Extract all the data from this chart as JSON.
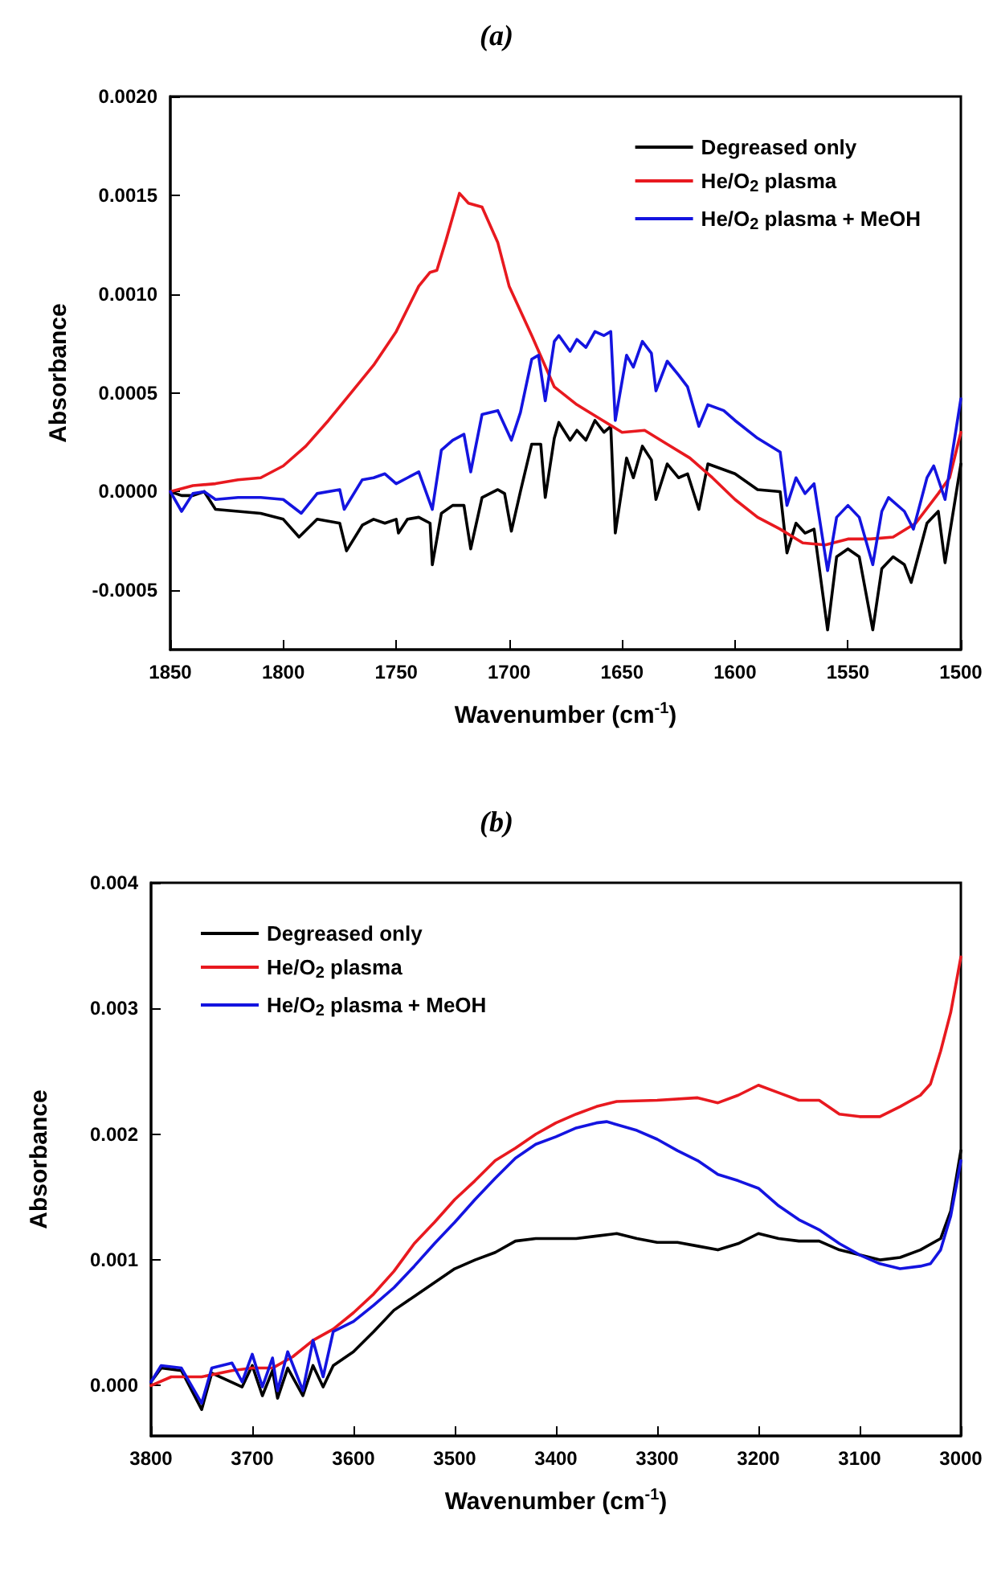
{
  "chart_data": [
    {
      "type": "line",
      "title": "(a)",
      "xlabel": "Wavenumber (cm$^{-1}$)",
      "ylabel": "Absorbance",
      "xlim": [
        1850,
        1500
      ],
      "xticks": [
        1850,
        1800,
        1750,
        1700,
        1650,
        1600,
        1550,
        1500
      ],
      "ylim": [
        -0.0008,
        0.002
      ],
      "yticks": [
        {
          "value": -0.0005,
          "label": "-0.0005"
        },
        {
          "value": 0,
          "label": "0.0000"
        },
        {
          "value": 0.0005,
          "label": "0.0005"
        },
        {
          "value": 0.001,
          "label": "0.0010"
        },
        {
          "value": 0.0015,
          "label": "0.0015"
        },
        {
          "value": 0.002,
          "label": "0.0020"
        }
      ],
      "legend": "top right",
      "grid": false,
      "marker": "none",
      "line_style": "solid",
      "series": [
        {
          "name": "Degreased only",
          "color": "#000000",
          "x": [
            1850,
            1845,
            1840,
            1835,
            1830,
            1820,
            1810,
            1800,
            1793,
            1785,
            1775,
            1772,
            1765,
            1760,
            1755,
            1750,
            1749,
            1745,
            1740,
            1735,
            1734,
            1730,
            1725,
            1720,
            1717,
            1712,
            1705,
            1702,
            1699,
            1695,
            1690,
            1686,
            1684,
            1680,
            1678,
            1673,
            1670,
            1666,
            1662,
            1658,
            1655,
            1653,
            1648,
            1645,
            1641,
            1637,
            1635,
            1630,
            1625,
            1621,
            1616,
            1612,
            1600,
            1590,
            1580,
            1577,
            1573,
            1569,
            1565,
            1559,
            1555,
            1550,
            1545,
            1539,
            1535,
            1530,
            1525,
            1522,
            1515,
            1510,
            1507,
            1500
          ],
          "values": [
            0,
            -2e-05,
            -2e-05,
            0,
            -9e-05,
            -0.0001,
            -0.00011,
            -0.00014,
            -0.00023,
            -0.00014,
            -0.00016,
            -0.0003,
            -0.00017,
            -0.00014,
            -0.00016,
            -0.00014,
            -0.00021,
            -0.00014,
            -0.00013,
            -0.00016,
            -0.00037,
            -0.00011,
            -7e-05,
            -7e-05,
            -0.00029,
            -3e-05,
            1e-05,
            -1e-05,
            -0.0002,
            0,
            0.00024,
            0.00024,
            -3e-05,
            0.00027,
            0.00035,
            0.00026,
            0.00031,
            0.00026,
            0.00036,
            0.0003,
            0.00033,
            -0.00021,
            0.00017,
            7e-05,
            0.00023,
            0.00016,
            -4e-05,
            0.00014,
            7e-05,
            9e-05,
            -9e-05,
            0.00014,
            9e-05,
            1e-05,
            0,
            -0.00031,
            -0.00016,
            -0.00021,
            -0.00019,
            -0.0007,
            -0.00033,
            -0.00029,
            -0.00033,
            -0.0007,
            -0.00039,
            -0.00033,
            -0.00037,
            -0.00046,
            -0.00016,
            -0.0001,
            -0.00036,
            0.00014
          ]
        },
        {
          "name": "He/O$_{2}$ plasma",
          "color": "#e8191f",
          "x": [
            1850,
            1840,
            1830,
            1820,
            1810,
            1800,
            1790,
            1780,
            1770,
            1760,
            1750,
            1740,
            1735,
            1732,
            1728,
            1722,
            1718,
            1712,
            1705,
            1700,
            1690,
            1680,
            1670,
            1660,
            1650,
            1640,
            1630,
            1620,
            1610,
            1600,
            1590,
            1580,
            1570,
            1560,
            1550,
            1540,
            1530,
            1520,
            1510,
            1505,
            1500
          ],
          "values": [
            0,
            3e-05,
            4e-05,
            6e-05,
            7e-05,
            0.00013,
            0.00023,
            0.00036,
            0.0005,
            0.00064,
            0.00081,
            0.00104,
            0.00111,
            0.00112,
            0.00127,
            0.00151,
            0.00146,
            0.00144,
            0.00126,
            0.00104,
            0.00079,
            0.00053,
            0.00044,
            0.00037,
            0.0003,
            0.00031,
            0.00024,
            0.00017,
            7e-05,
            -4e-05,
            -0.00013,
            -0.00019,
            -0.00026,
            -0.00027,
            -0.00024,
            -0.00024,
            -0.00023,
            -0.00016,
            -1e-05,
            7e-05,
            0.0003
          ]
        },
        {
          "name": "He/O$_{2}$ plasma + MeOH",
          "color": "#1414e0",
          "x": [
            1850,
            1845,
            1840,
            1835,
            1830,
            1820,
            1810,
            1800,
            1792,
            1785,
            1775,
            1773,
            1765,
            1760,
            1755,
            1750,
            1745,
            1740,
            1734,
            1730,
            1725,
            1720,
            1717,
            1712,
            1705,
            1699,
            1695,
            1690,
            1687,
            1684,
            1680,
            1678,
            1673,
            1670,
            1666,
            1662,
            1658,
            1655,
            1653,
            1648,
            1645,
            1641,
            1637,
            1635,
            1630,
            1625,
            1621,
            1616,
            1612,
            1605,
            1600,
            1590,
            1580,
            1577,
            1573,
            1569,
            1565,
            1559,
            1555,
            1550,
            1545,
            1539,
            1535,
            1532,
            1525,
            1521,
            1515,
            1512,
            1507,
            1500
          ],
          "values": [
            0,
            -0.0001,
            -1e-05,
            0,
            -4e-05,
            -3e-05,
            -3e-05,
            -4e-05,
            -0.00011,
            -1e-05,
            1e-05,
            -9e-05,
            6e-05,
            7e-05,
            9e-05,
            4e-05,
            7e-05,
            0.0001,
            -9e-05,
            0.00021,
            0.00026,
            0.00029,
            0.0001,
            0.00039,
            0.00041,
            0.00026,
            0.0004,
            0.00067,
            0.00069,
            0.00046,
            0.00076,
            0.00079,
            0.00071,
            0.00077,
            0.00073,
            0.00081,
            0.00079,
            0.00081,
            0.00036,
            0.00069,
            0.00063,
            0.00076,
            0.0007,
            0.00051,
            0.00066,
            0.00059,
            0.00053,
            0.00033,
            0.00044,
            0.00041,
            0.00036,
            0.00027,
            0.0002,
            -7e-05,
            7e-05,
            -1e-05,
            4e-05,
            -0.0004,
            -0.00013,
            -7e-05,
            -0.00013,
            -0.00037,
            -0.0001,
            -3e-05,
            -0.0001,
            -0.00019,
            7e-05,
            0.00013,
            -4e-05,
            0.00047
          ]
        }
      ]
    },
    {
      "type": "line",
      "title": "(b)",
      "xlabel": "Wavenumber (cm$^{-1}$)",
      "ylabel": "Absorbance",
      "xlim": [
        3800,
        3000
      ],
      "xticks": [
        3800,
        3700,
        3600,
        3500,
        3400,
        3300,
        3200,
        3100,
        3000
      ],
      "ylim": [
        -0.0004,
        0.004
      ],
      "yticks": [
        {
          "value": 0,
          "label": "0.000"
        },
        0.001,
        0.002,
        0.003,
        {
          "value": 0.004,
          "label": "0.004"
        }
      ],
      "legend": "top left",
      "grid": false,
      "marker": "none",
      "line_style": "solid",
      "series": [
        {
          "name": "Degreased only",
          "color": "#000000",
          "x": [
            3800,
            3790,
            3770,
            3750,
            3740,
            3710,
            3700,
            3690,
            3680,
            3675,
            3665,
            3650,
            3640,
            3630,
            3620,
            3600,
            3580,
            3560,
            3540,
            3520,
            3500,
            3480,
            3460,
            3440,
            3420,
            3400,
            3380,
            3360,
            3340,
            3320,
            3300,
            3280,
            3260,
            3240,
            3220,
            3200,
            3180,
            3160,
            3140,
            3120,
            3100,
            3080,
            3060,
            3040,
            3020,
            3010,
            3000
          ],
          "values": [
            3e-05,
            0.00014,
            0.00012,
            -0.00019,
            0.0001,
            -1e-05,
            0.00016,
            -8e-05,
            0.00012,
            -0.0001,
            0.00014,
            -8e-05,
            0.00016,
            -1e-05,
            0.00016,
            0.00027,
            0.00043,
            0.0006,
            0.00071,
            0.00082,
            0.00093,
            0.001,
            0.00106,
            0.00115,
            0.00117,
            0.00117,
            0.00117,
            0.00119,
            0.00121,
            0.00117,
            0.00114,
            0.00114,
            0.00111,
            0.00108,
            0.00113,
            0.00121,
            0.00117,
            0.00115,
            0.00115,
            0.00108,
            0.00104,
            0.001,
            0.00102,
            0.00108,
            0.00117,
            0.00139,
            0.00187
          ]
        },
        {
          "name": "He/O$_{2}$ plasma",
          "color": "#e8191f",
          "x": [
            3800,
            3780,
            3750,
            3720,
            3700,
            3680,
            3660,
            3640,
            3620,
            3600,
            3580,
            3560,
            3540,
            3520,
            3500,
            3480,
            3460,
            3440,
            3420,
            3400,
            3380,
            3360,
            3340,
            3300,
            3260,
            3240,
            3220,
            3200,
            3180,
            3160,
            3140,
            3120,
            3100,
            3080,
            3060,
            3040,
            3030,
            3020,
            3010,
            3000
          ],
          "values": [
            0,
            7e-05,
            7e-05,
            0.00012,
            0.00014,
            0.00014,
            0.00023,
            0.00036,
            0.00045,
            0.00058,
            0.00073,
            0.00091,
            0.00113,
            0.0013,
            0.00148,
            0.00163,
            0.00179,
            0.00189,
            0.002,
            0.00209,
            0.00216,
            0.00222,
            0.00226,
            0.00227,
            0.00229,
            0.00225,
            0.00231,
            0.00239,
            0.00233,
            0.00227,
            0.00227,
            0.00216,
            0.00214,
            0.00214,
            0.00222,
            0.00231,
            0.0024,
            0.00266,
            0.00297,
            0.00341
          ]
        },
        {
          "name": "He/O$_{2}$ plasma + MeOH",
          "color": "#1414e0",
          "x": [
            3800,
            3790,
            3770,
            3750,
            3740,
            3720,
            3710,
            3700,
            3690,
            3680,
            3675,
            3665,
            3650,
            3640,
            3630,
            3620,
            3600,
            3580,
            3560,
            3540,
            3520,
            3500,
            3480,
            3460,
            3440,
            3420,
            3400,
            3380,
            3360,
            3350,
            3320,
            3300,
            3280,
            3260,
            3240,
            3220,
            3200,
            3180,
            3160,
            3140,
            3120,
            3100,
            3080,
            3060,
            3040,
            3030,
            3020,
            3010,
            3000
          ],
          "values": [
            3e-05,
            0.00016,
            0.00014,
            -0.00014,
            0.00014,
            0.00018,
            3e-05,
            0.00025,
            -1e-05,
            0.00022,
            -4e-05,
            0.00027,
            -4e-05,
            0.00036,
            7e-05,
            0.00043,
            0.00051,
            0.00064,
            0.00078,
            0.00095,
            0.00113,
            0.0013,
            0.00148,
            0.00165,
            0.00181,
            0.00192,
            0.00198,
            0.00205,
            0.00209,
            0.0021,
            0.00203,
            0.00196,
            0.00187,
            0.00179,
            0.00168,
            0.00163,
            0.00157,
            0.00143,
            0.00132,
            0.00124,
            0.00113,
            0.00104,
            0.00097,
            0.00093,
            0.00095,
            0.00097,
            0.00108,
            0.00135,
            0.00179
          ]
        }
      ]
    }
  ]
}
